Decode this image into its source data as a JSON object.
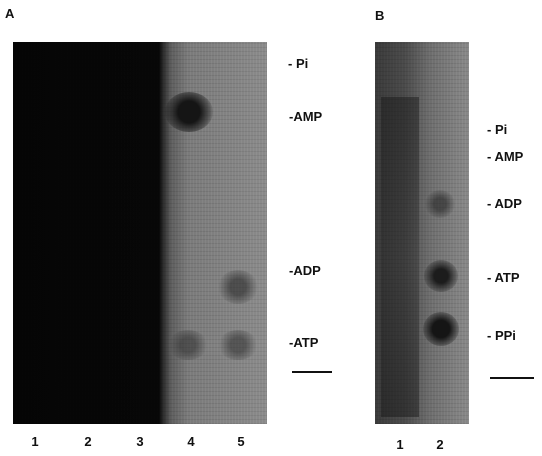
{
  "panel_a": {
    "label": "A",
    "markers": [
      "- Pi",
      "-AMP",
      "-ADP",
      "-ATP"
    ],
    "lanes": [
      "1",
      "2",
      "3",
      "4",
      "5"
    ]
  },
  "panel_b": {
    "label": "B",
    "markers": [
      "- Pi",
      "- AMP",
      "- ADP",
      "- ATP",
      "- PPi"
    ],
    "lanes": [
      "1",
      "2"
    ]
  }
}
